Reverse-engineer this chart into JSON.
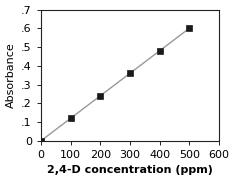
{
  "x_data": [
    0,
    100,
    200,
    300,
    400,
    500
  ],
  "y_data": [
    0.0,
    0.12,
    0.24,
    0.36,
    0.48,
    0.6
  ],
  "xlabel": "2,4-D concentration (ppm)",
  "ylabel": "Absorbance",
  "xlim": [
    0,
    600
  ],
  "ylim": [
    0,
    0.7
  ],
  "xticks": [
    0,
    100,
    200,
    300,
    400,
    500,
    600
  ],
  "yticks": [
    0.0,
    0.1,
    0.2,
    0.3,
    0.4,
    0.5,
    0.6,
    0.7
  ],
  "ytick_labels": [
    "0",
    ".1",
    ".2",
    ".3",
    ".4",
    ".5",
    ".6",
    ".7"
  ],
  "line_color": "#999999",
  "marker_color": "#1a1a1a",
  "marker_style": "s",
  "marker_size": 5,
  "line_width": 1.0,
  "bg_color": "#ffffff",
  "plot_bg_color": "#ffffff",
  "xlabel_fontsize": 8,
  "ylabel_fontsize": 8,
  "tick_fontsize": 8,
  "fig_width": 2.35,
  "fig_height": 1.81
}
